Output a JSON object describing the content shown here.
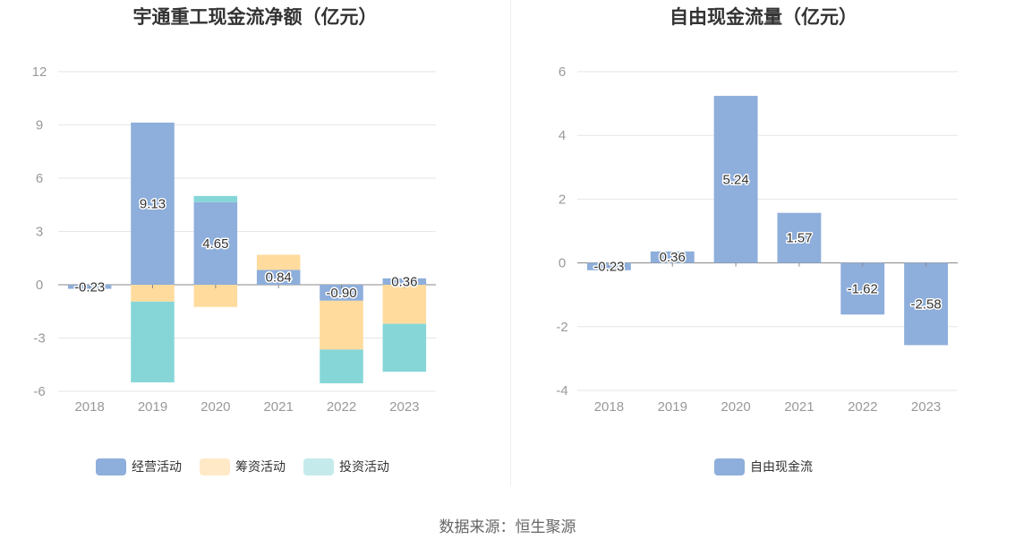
{
  "colors": {
    "operating": "#8eaedb",
    "financing": "#ffdb9e",
    "investing": "#86d6d8",
    "fcf": "#8eaedb"
  },
  "chart_data": [
    {
      "type": "bar",
      "stacked": true,
      "title": "宇通重工现金流净额（亿元）",
      "categories": [
        "2018",
        "2019",
        "2020",
        "2021",
        "2022",
        "2023"
      ],
      "yticks": [
        12,
        9,
        6,
        3,
        0,
        -3,
        -6
      ],
      "ylim": [
        -6,
        12
      ],
      "series": [
        {
          "name": "经营活动",
          "values": [
            -0.23,
            9.13,
            4.65,
            0.84,
            -0.9,
            0.36
          ],
          "labels": [
            "-0.23",
            "9.13",
            "4.65",
            "0.84",
            "-0.90",
            "0.36"
          ]
        },
        {
          "name": "筹资活动",
          "values": [
            0,
            -0.95,
            -1.25,
            0.85,
            -2.75,
            -2.2
          ]
        },
        {
          "name": "投资活动",
          "values": [
            0,
            -4.55,
            0.35,
            0,
            -1.9,
            -2.7
          ]
        }
      ]
    },
    {
      "type": "bar",
      "title": "自由现金流量（亿元）",
      "categories": [
        "2018",
        "2019",
        "2020",
        "2021",
        "2022",
        "2023"
      ],
      "yticks": [
        6,
        4,
        2,
        0,
        -2,
        -4
      ],
      "ylim": [
        -4,
        6
      ],
      "series": [
        {
          "name": "自由现金流",
          "values": [
            -0.23,
            0.36,
            5.24,
            1.57,
            -1.62,
            -2.58
          ],
          "labels": [
            "-0.23",
            "0.36",
            "5.24",
            "1.57",
            "-1.62",
            "-2.58"
          ]
        }
      ]
    }
  ],
  "source_text": "数据来源：恒生聚源"
}
